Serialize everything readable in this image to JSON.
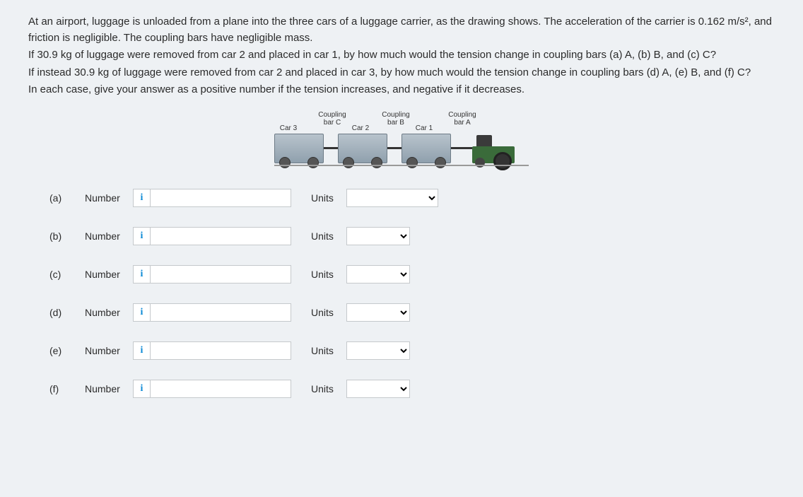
{
  "problem": {
    "p1": "At an airport, luggage is unloaded from a plane into the three cars of a luggage carrier, as the drawing shows. The acceleration of the carrier is 0.162 m/s², and friction is negligible. The coupling bars have negligible mass.",
    "p2": "If 30.9 kg of luggage were removed from car 2 and placed in car 1, by how much would the tension change in coupling bars (a) A, (b) B, and (c) C?",
    "p3": "If instead 30.9 kg of luggage were removed from car 2 and placed in car 3, by how much would the tension change in coupling bars (d) A, (e) B, and (f) C?",
    "p4": "In each case, give your answer as a positive number if the tension increases, and negative if it decreases."
  },
  "diagram": {
    "car3": "Car 3",
    "car2": "Car 2",
    "car1": "Car 1",
    "coupling": "Coupling",
    "barC": "bar C",
    "barB": "bar B",
    "barA": "bar A"
  },
  "labels": {
    "number": "Number",
    "units": "Units",
    "info": "i"
  },
  "parts": {
    "a": "(a)",
    "b": "(b)",
    "c": "(c)",
    "d": "(d)",
    "e": "(e)",
    "f": "(f)"
  },
  "values": {
    "a": "",
    "b": "",
    "c": "",
    "d": "",
    "e": "",
    "f": ""
  },
  "colors": {
    "background": "#eef1f4",
    "text": "#2b2b2b",
    "info_icon": "#0d8ad6",
    "border": "#c5c9cc"
  }
}
